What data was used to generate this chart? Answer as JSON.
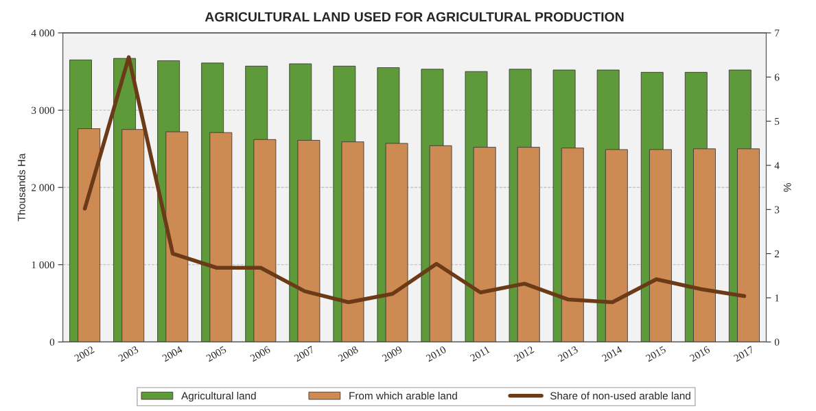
{
  "chart_data": {
    "type": "bar",
    "title": "AGRICULTURAL LAND USED FOR AGRICULTURAL PRODUCTION",
    "ylabel": "Thousands Ha",
    "y2label": "%",
    "categories": [
      "2002",
      "2003",
      "2004",
      "2005",
      "2006",
      "2007",
      "2008",
      "2009",
      "2010",
      "2011",
      "2012",
      "2013",
      "2014",
      "2015",
      "2016",
      "2017"
    ],
    "series": [
      {
        "name": "Agricultural land",
        "type": "bar",
        "color": "#5e9a3a",
        "values": [
          3650,
          3670,
          3640,
          3610,
          3570,
          3600,
          3570,
          3550,
          3530,
          3500,
          3530,
          3520,
          3520,
          3490,
          3490,
          3520
        ]
      },
      {
        "name": "From which arable land",
        "type": "bar",
        "color": "#cd8a52",
        "values": [
          2760,
          2750,
          2720,
          2710,
          2620,
          2610,
          2590,
          2570,
          2540,
          2520,
          2520,
          2510,
          2490,
          2490,
          2500,
          2500
        ]
      },
      {
        "name": "Share of non-used arable land",
        "type": "line",
        "axis": "y2",
        "color": "#6b3a17",
        "values": [
          3.02,
          6.45,
          2.0,
          1.68,
          1.68,
          1.15,
          0.9,
          1.09,
          1.77,
          1.12,
          1.32,
          0.96,
          0.9,
          1.42,
          1.2,
          1.04
        ]
      }
    ],
    "ylim": [
      0,
      4000
    ],
    "yticks": [
      0,
      {
        "value": 1000,
        "label": "1 000"
      },
      {
        "value": 2000,
        "label": "2 000"
      },
      {
        "value": 3000,
        "label": "3 000"
      },
      {
        "value": 4000,
        "label": "4 000"
      }
    ],
    "y2lim": [
      0,
      7
    ],
    "y2ticks": [
      0,
      1,
      2,
      3,
      4,
      5,
      6,
      7
    ],
    "grid": "y",
    "legend": "bottom",
    "marker": "none",
    "line_style": "solid"
  }
}
